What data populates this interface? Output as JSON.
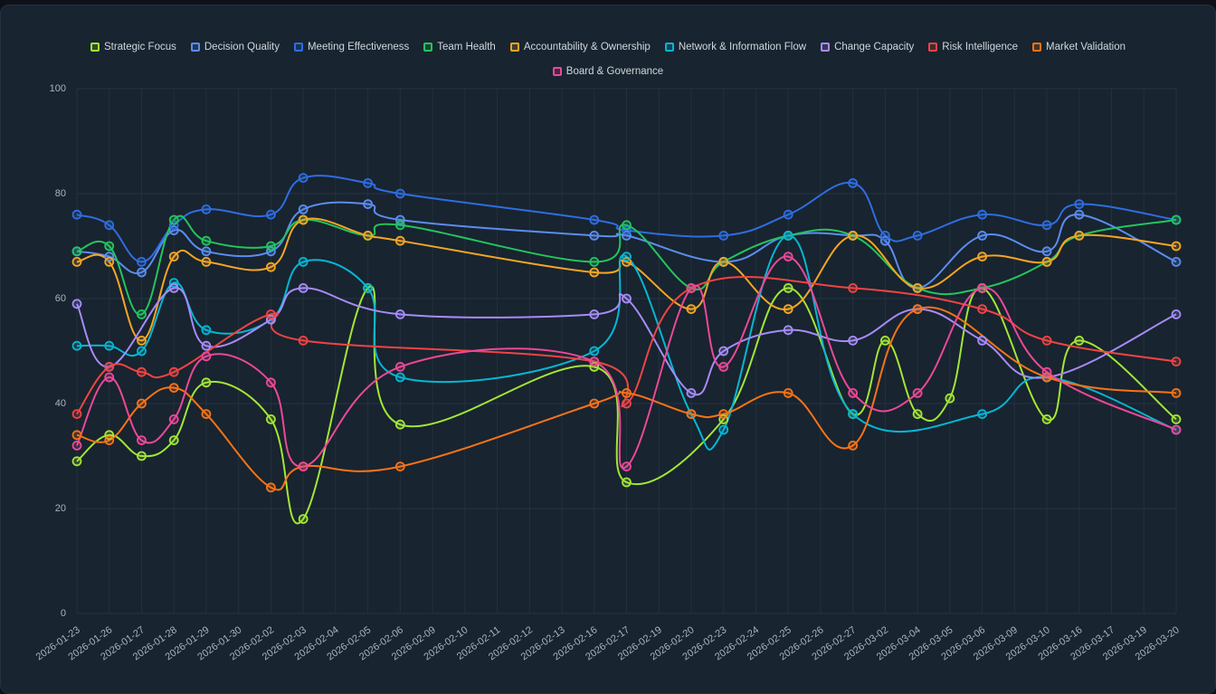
{
  "chart_data": {
    "type": "line",
    "categories": [
      "2026-01-23",
      "2026-01-26",
      "2026-01-27",
      "2026-01-28",
      "2026-01-29",
      "2026-01-30",
      "2026-02-02",
      "2026-02-03",
      "2026-02-04",
      "2026-02-05",
      "2026-02-06",
      "2026-02-09",
      "2026-02-10",
      "2026-02-11",
      "2026-02-12",
      "2026-02-13",
      "2026-02-16",
      "2026-02-17",
      "2026-02-19",
      "2026-02-20",
      "2026-02-23",
      "2026-02-24",
      "2026-02-25",
      "2026-02-26",
      "2026-02-27",
      "2026-03-02",
      "2026-03-04",
      "2026-03-05",
      "2026-03-06",
      "2026-03-09",
      "2026-03-10",
      "2026-03-16",
      "2026-03-17",
      "2026-03-19",
      "2026-03-20"
    ],
    "ylim": [
      0,
      100
    ],
    "yticks": [
      0,
      20,
      40,
      60,
      80,
      100
    ],
    "grid": true,
    "series": [
      {
        "name": "Strategic Focus",
        "color": "#a3e635",
        "values": [
          29,
          34,
          30,
          33,
          44,
          null,
          37,
          18,
          null,
          62,
          36,
          null,
          null,
          null,
          null,
          null,
          47,
          25,
          null,
          null,
          37,
          null,
          62,
          null,
          38,
          52,
          38,
          41,
          62,
          null,
          37,
          52,
          null,
          null,
          37
        ]
      },
      {
        "name": "Decision Quality",
        "color": "#5b8def",
        "values": [
          69,
          68,
          65,
          73,
          69,
          null,
          69,
          77,
          null,
          78,
          75,
          null,
          null,
          null,
          null,
          null,
          72,
          72,
          null,
          null,
          67,
          null,
          72,
          null,
          72,
          71,
          62,
          null,
          72,
          null,
          69,
          76,
          null,
          null,
          67
        ]
      },
      {
        "name": "Meeting Effectiveness",
        "color": "#2f6de1",
        "values": [
          76,
          74,
          67,
          74,
          77,
          null,
          76,
          83,
          null,
          82,
          80,
          null,
          null,
          null,
          null,
          null,
          75,
          73,
          null,
          null,
          72,
          null,
          76,
          null,
          82,
          72,
          72,
          null,
          76,
          null,
          74,
          78,
          null,
          null,
          75
        ]
      },
      {
        "name": "Team Health",
        "color": "#22c55e",
        "values": [
          69,
          70,
          57,
          75,
          71,
          null,
          70,
          75,
          null,
          72,
          74,
          null,
          null,
          null,
          null,
          null,
          67,
          74,
          null,
          62,
          67,
          null,
          72,
          null,
          72,
          null,
          62,
          null,
          62,
          null,
          67,
          72,
          null,
          null,
          75
        ]
      },
      {
        "name": "Accountability & Ownership",
        "color": "#f5a623",
        "values": [
          67,
          67,
          52,
          68,
          67,
          null,
          66,
          75,
          null,
          72,
          71,
          null,
          null,
          null,
          null,
          null,
          65,
          67,
          null,
          58,
          67,
          null,
          58,
          null,
          72,
          null,
          62,
          null,
          68,
          null,
          67,
          72,
          null,
          null,
          70
        ]
      },
      {
        "name": "Network & Information Flow",
        "color": "#06b6d4",
        "values": [
          51,
          51,
          50,
          63,
          54,
          null,
          56,
          67,
          null,
          62,
          45,
          null,
          null,
          null,
          null,
          null,
          50,
          68,
          null,
          38,
          35,
          null,
          72,
          null,
          38,
          null,
          null,
          null,
          38,
          null,
          45,
          null,
          null,
          null,
          35
        ]
      },
      {
        "name": "Change Capacity",
        "color": "#a78bfa",
        "values": [
          59,
          47,
          null,
          62,
          51,
          null,
          56,
          62,
          null,
          null,
          57,
          null,
          null,
          null,
          null,
          null,
          57,
          60,
          null,
          42,
          50,
          null,
          54,
          null,
          52,
          null,
          58,
          null,
          52,
          null,
          45,
          null,
          null,
          null,
          57
        ]
      },
      {
        "name": "Risk Intelligence",
        "color": "#ef4444",
        "values": [
          38,
          47,
          46,
          46,
          null,
          null,
          57,
          52,
          null,
          null,
          null,
          null,
          null,
          null,
          null,
          null,
          48,
          40,
          null,
          62,
          null,
          null,
          null,
          null,
          62,
          null,
          null,
          null,
          58,
          null,
          52,
          null,
          null,
          null,
          48
        ]
      },
      {
        "name": "Market Validation",
        "color": "#f97316",
        "values": [
          34,
          33,
          40,
          43,
          38,
          null,
          24,
          28,
          null,
          null,
          28,
          null,
          null,
          null,
          null,
          null,
          40,
          42,
          null,
          38,
          38,
          null,
          42,
          null,
          32,
          null,
          58,
          null,
          null,
          null,
          45,
          null,
          null,
          null,
          42
        ]
      },
      {
        "name": "Board & Governance",
        "color": "#ec4899",
        "values": [
          32,
          45,
          33,
          37,
          49,
          null,
          44,
          28,
          null,
          null,
          47,
          null,
          null,
          null,
          null,
          null,
          48,
          28,
          null,
          62,
          47,
          null,
          68,
          null,
          42,
          null,
          42,
          null,
          62,
          null,
          46,
          null,
          null,
          null,
          35
        ]
      }
    ]
  }
}
